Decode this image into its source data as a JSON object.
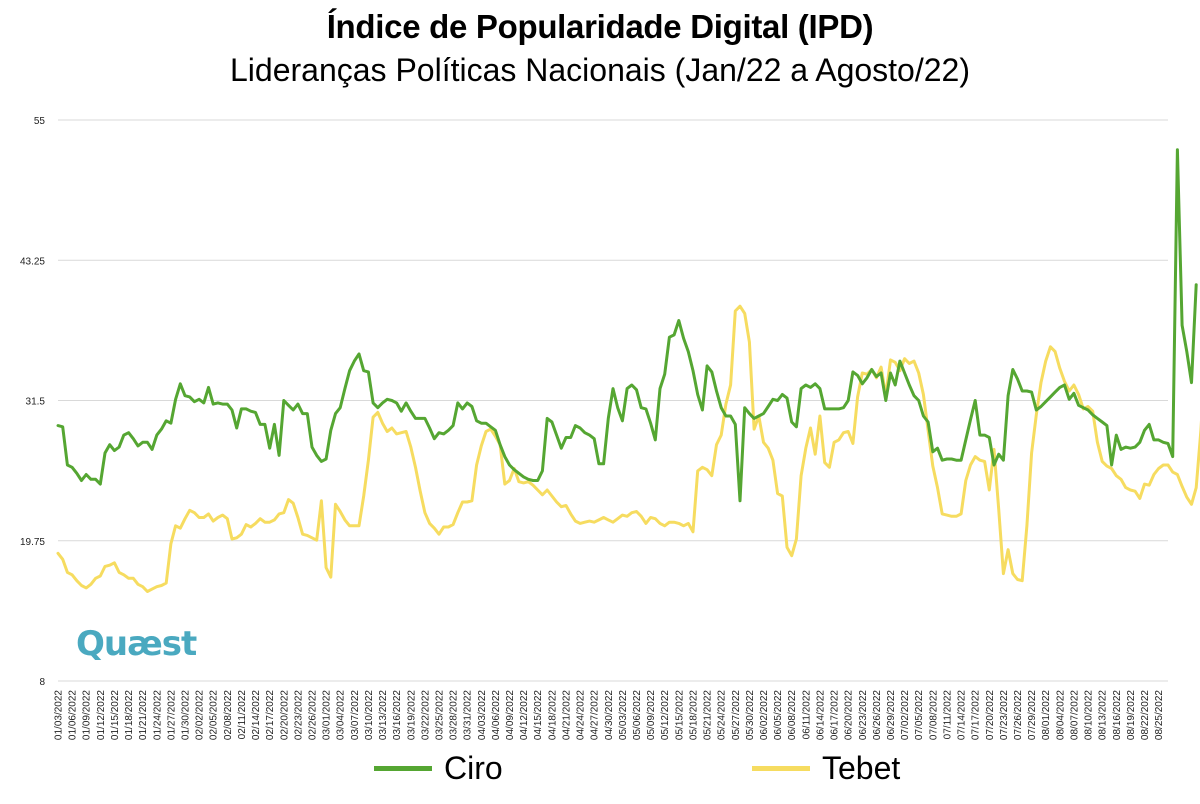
{
  "chart_data": {
    "type": "line",
    "title": "Índice de Popularidade Digital (IPD)",
    "subtitle": "Lideranças Políticas Nacionais (Jan/22 a Agosto/22)",
    "ylim": [
      8,
      55
    ],
    "yticks": [
      "8",
      "19.75",
      "31.5",
      "43.25",
      "55"
    ],
    "x_tick_labels": [
      "01/03/2022",
      "01/06/2022",
      "01/09/2022",
      "01/12/2022",
      "01/15/2022",
      "01/18/2022",
      "01/21/2022",
      "01/24/2022",
      "01/27/2022",
      "01/30/2022",
      "02/02/2022",
      "02/05/2022",
      "02/08/2022",
      "02/11/2022",
      "02/14/2022",
      "02/17/2022",
      "02/20/2022",
      "02/23/2022",
      "02/26/2022",
      "03/01/2022",
      "03/04/2022",
      "03/07/2022",
      "03/10/2022",
      "03/13/2022",
      "03/16/2022",
      "03/19/2022",
      "03/22/2022",
      "03/25/2022",
      "03/28/2022",
      "03/31/2022",
      "04/03/2022",
      "04/06/2022",
      "04/09/2022",
      "04/12/2022",
      "04/15/2022",
      "04/18/2022",
      "04/21/2022",
      "04/24/2022",
      "04/27/2022",
      "04/30/2022",
      "05/03/2022",
      "05/06/2022",
      "05/09/2022",
      "05/12/2022",
      "05/15/2022",
      "05/18/2022",
      "05/21/2022",
      "05/24/2022",
      "05/27/2022",
      "05/30/2022",
      "06/02/2022",
      "06/05/2022",
      "06/08/2022",
      "06/11/2022",
      "06/14/2022",
      "06/17/2022",
      "06/20/2022",
      "06/23/2022",
      "06/26/2022",
      "06/29/2022",
      "07/02/2022",
      "07/05/2022",
      "07/08/2022",
      "07/11/2022",
      "07/14/2022",
      "07/17/2022",
      "07/20/2022",
      "07/23/2022",
      "07/26/2022",
      "07/29/2022",
      "08/01/2022",
      "08/04/2022",
      "08/07/2022",
      "08/10/2022",
      "08/13/2022",
      "08/16/2022",
      "08/19/2022",
      "08/22/2022",
      "08/25/2022"
    ],
    "n_points": 237,
    "series": [
      {
        "name": "Ciro",
        "color": "#55a632",
        "values": [
          29.4,
          29.3,
          26.1,
          25.9,
          25.4,
          24.8,
          25.3,
          24.9,
          24.9,
          24.5,
          27.1,
          27.8,
          27.3,
          27.6,
          28.6,
          28.8,
          28.3,
          27.7,
          28.0,
          28.0,
          27.4,
          28.6,
          29.1,
          29.8,
          29.6,
          31.6,
          32.9,
          31.9,
          31.8,
          31.4,
          31.6,
          31.3,
          32.6,
          31.2,
          31.3,
          31.2,
          31.2,
          30.7,
          29.2,
          30.8,
          30.8,
          30.6,
          30.5,
          29.5,
          29.5,
          27.5,
          29.5,
          26.9,
          31.5,
          31.1,
          30.7,
          31.2,
          30.4,
          30.4,
          27.6,
          26.9,
          26.4,
          26.6,
          29.0,
          30.4,
          30.9,
          32.5,
          34.0,
          34.8,
          35.4,
          34.0,
          33.9,
          31.3,
          30.9,
          31.3,
          31.6,
          31.5,
          31.3,
          30.6,
          31.3,
          30.6,
          30.0,
          30.0,
          30.0,
          29.2,
          28.3,
          28.8,
          28.7,
          29.0,
          29.4,
          31.3,
          30.8,
          31.3,
          31.0,
          29.8,
          29.6,
          29.6,
          29.3,
          29.0,
          27.8,
          26.8,
          26.1,
          25.7,
          25.4,
          25.1,
          24.9,
          24.8,
          24.8,
          25.6,
          30.0,
          29.7,
          28.6,
          27.5,
          28.4,
          28.4,
          29.4,
          29.2,
          28.8,
          28.6,
          28.3,
          26.2,
          26.2,
          30.0,
          32.5,
          30.9,
          29.8,
          32.5,
          32.8,
          32.4,
          30.9,
          30.8,
          29.6,
          28.2,
          32.5,
          33.7,
          36.8,
          37.0,
          38.2,
          36.7,
          35.6,
          34.0,
          32.0,
          30.7,
          34.4,
          33.9,
          32.3,
          30.9,
          30.2,
          30.2,
          29.5,
          23.1,
          30.9,
          30.4,
          30.0,
          30.2,
          30.4,
          31.0,
          31.6,
          31.5,
          32.0,
          31.7,
          29.7,
          29.3,
          32.5,
          32.8,
          32.6,
          32.9,
          32.5,
          30.8,
          30.8,
          30.8,
          30.8,
          30.9,
          31.5,
          33.9,
          33.6,
          32.9,
          33.4,
          34.1,
          33.5,
          33.8,
          31.5,
          33.8,
          32.8,
          34.8,
          33.8,
          32.8,
          31.9,
          31.5,
          30.2,
          29.7,
          27.2,
          27.5,
          26.5,
          26.6,
          26.6,
          26.5,
          26.5,
          28.2,
          29.9,
          31.5,
          28.6,
          28.6,
          28.4,
          26.1,
          27.0,
          26.5,
          31.9,
          34.1,
          33.3,
          32.3,
          32.3,
          32.2,
          30.7,
          31.0,
          31.4,
          31.8,
          32.2,
          32.6,
          32.8,
          31.6,
          32.1,
          31.1,
          30.9,
          30.7,
          30.3,
          30.0,
          29.7,
          29.4,
          26.1,
          28.6,
          27.4,
          27.6,
          27.5,
          27.6,
          28.0,
          29.0,
          29.5,
          28.2,
          28.2,
          28.0,
          27.9,
          26.8,
          52.5,
          37.8,
          35.6,
          33.0,
          41.2
        ]
      },
      {
        "name": "Tebet",
        "color": "#f6dc60",
        "values": [
          18.7,
          18.2,
          17.1,
          16.9,
          16.4,
          16.0,
          15.8,
          16.1,
          16.6,
          16.8,
          17.6,
          17.7,
          17.9,
          17.1,
          16.9,
          16.6,
          16.6,
          16.1,
          15.9,
          15.5,
          15.7,
          15.9,
          16.0,
          16.2,
          19.5,
          21.0,
          20.8,
          21.6,
          22.3,
          22.1,
          21.7,
          21.7,
          22.0,
          21.4,
          21.7,
          21.9,
          21.6,
          19.9,
          20.0,
          20.3,
          21.1,
          20.9,
          21.2,
          21.6,
          21.3,
          21.3,
          21.5,
          22.0,
          22.1,
          23.2,
          22.9,
          21.7,
          20.3,
          20.2,
          20.0,
          19.8,
          23.1,
          17.5,
          16.7,
          22.8,
          22.2,
          21.5,
          21.0,
          21.0,
          21.0,
          23.5,
          26.5,
          30.1,
          30.5,
          29.6,
          28.9,
          29.2,
          28.7,
          28.8,
          28.9,
          27.6,
          25.9,
          23.9,
          22.1,
          21.2,
          20.8,
          20.3,
          20.9,
          20.9,
          21.1,
          22.1,
          23.0,
          23.0,
          23.1,
          26.1,
          27.7,
          28.9,
          29.1,
          28.5,
          27.8,
          24.5,
          24.8,
          25.8,
          24.7,
          24.6,
          24.7,
          24.4,
          24.0,
          23.6,
          24.0,
          23.5,
          23.0,
          22.6,
          22.7,
          22.0,
          21.4,
          21.2,
          21.3,
          21.4,
          21.3,
          21.5,
          21.7,
          21.5,
          21.3,
          21.6,
          21.9,
          21.8,
          22.1,
          22.2,
          21.8,
          21.2,
          21.7,
          21.6,
          21.2,
          21.0,
          21.3,
          21.3,
          21.2,
          21.0,
          21.2,
          20.5,
          25.6,
          25.9,
          25.7,
          25.2,
          27.8,
          28.6,
          31.2,
          32.8,
          39.0,
          39.4,
          38.8,
          36.4,
          29.1,
          30.2,
          28.0,
          27.5,
          26.5,
          23.7,
          23.5,
          19.2,
          18.5,
          19.9,
          25.2,
          27.5,
          29.2,
          27.0,
          30.2,
          26.3,
          25.9,
          28.0,
          28.2,
          28.8,
          28.9,
          27.9,
          31.8,
          33.8,
          33.7,
          34.1,
          33.4,
          34.3,
          31.9,
          34.9,
          34.7,
          34.0,
          35.0,
          34.6,
          34.8,
          33.8,
          32.0,
          29.0,
          26.0,
          24.2,
          22.0,
          21.9,
          21.8,
          21.8,
          22.0,
          24.8,
          26.1,
          26.8,
          26.5,
          26.4,
          24.0,
          27.4,
          22.4,
          17.0,
          19.0,
          17.0,
          16.5,
          16.4,
          21.0,
          27.1,
          30.3,
          33.0,
          34.8,
          36.0,
          35.6,
          34.2,
          33.1,
          32.3,
          32.8,
          32.0,
          30.8,
          31.0,
          30.6,
          28.0,
          26.4,
          26.0,
          25.8,
          25.2,
          24.9,
          24.2,
          24.0,
          23.9,
          23.3,
          24.5,
          24.4,
          25.3,
          25.8,
          26.1,
          26.1,
          25.5,
          25.3,
          24.3,
          23.4,
          22.8,
          24.2,
          29.0,
          35.6
        ]
      }
    ]
  },
  "logo": {
    "text": "Quæst"
  },
  "legend": {
    "ciro": "Ciro",
    "tebet": "Tebet"
  }
}
